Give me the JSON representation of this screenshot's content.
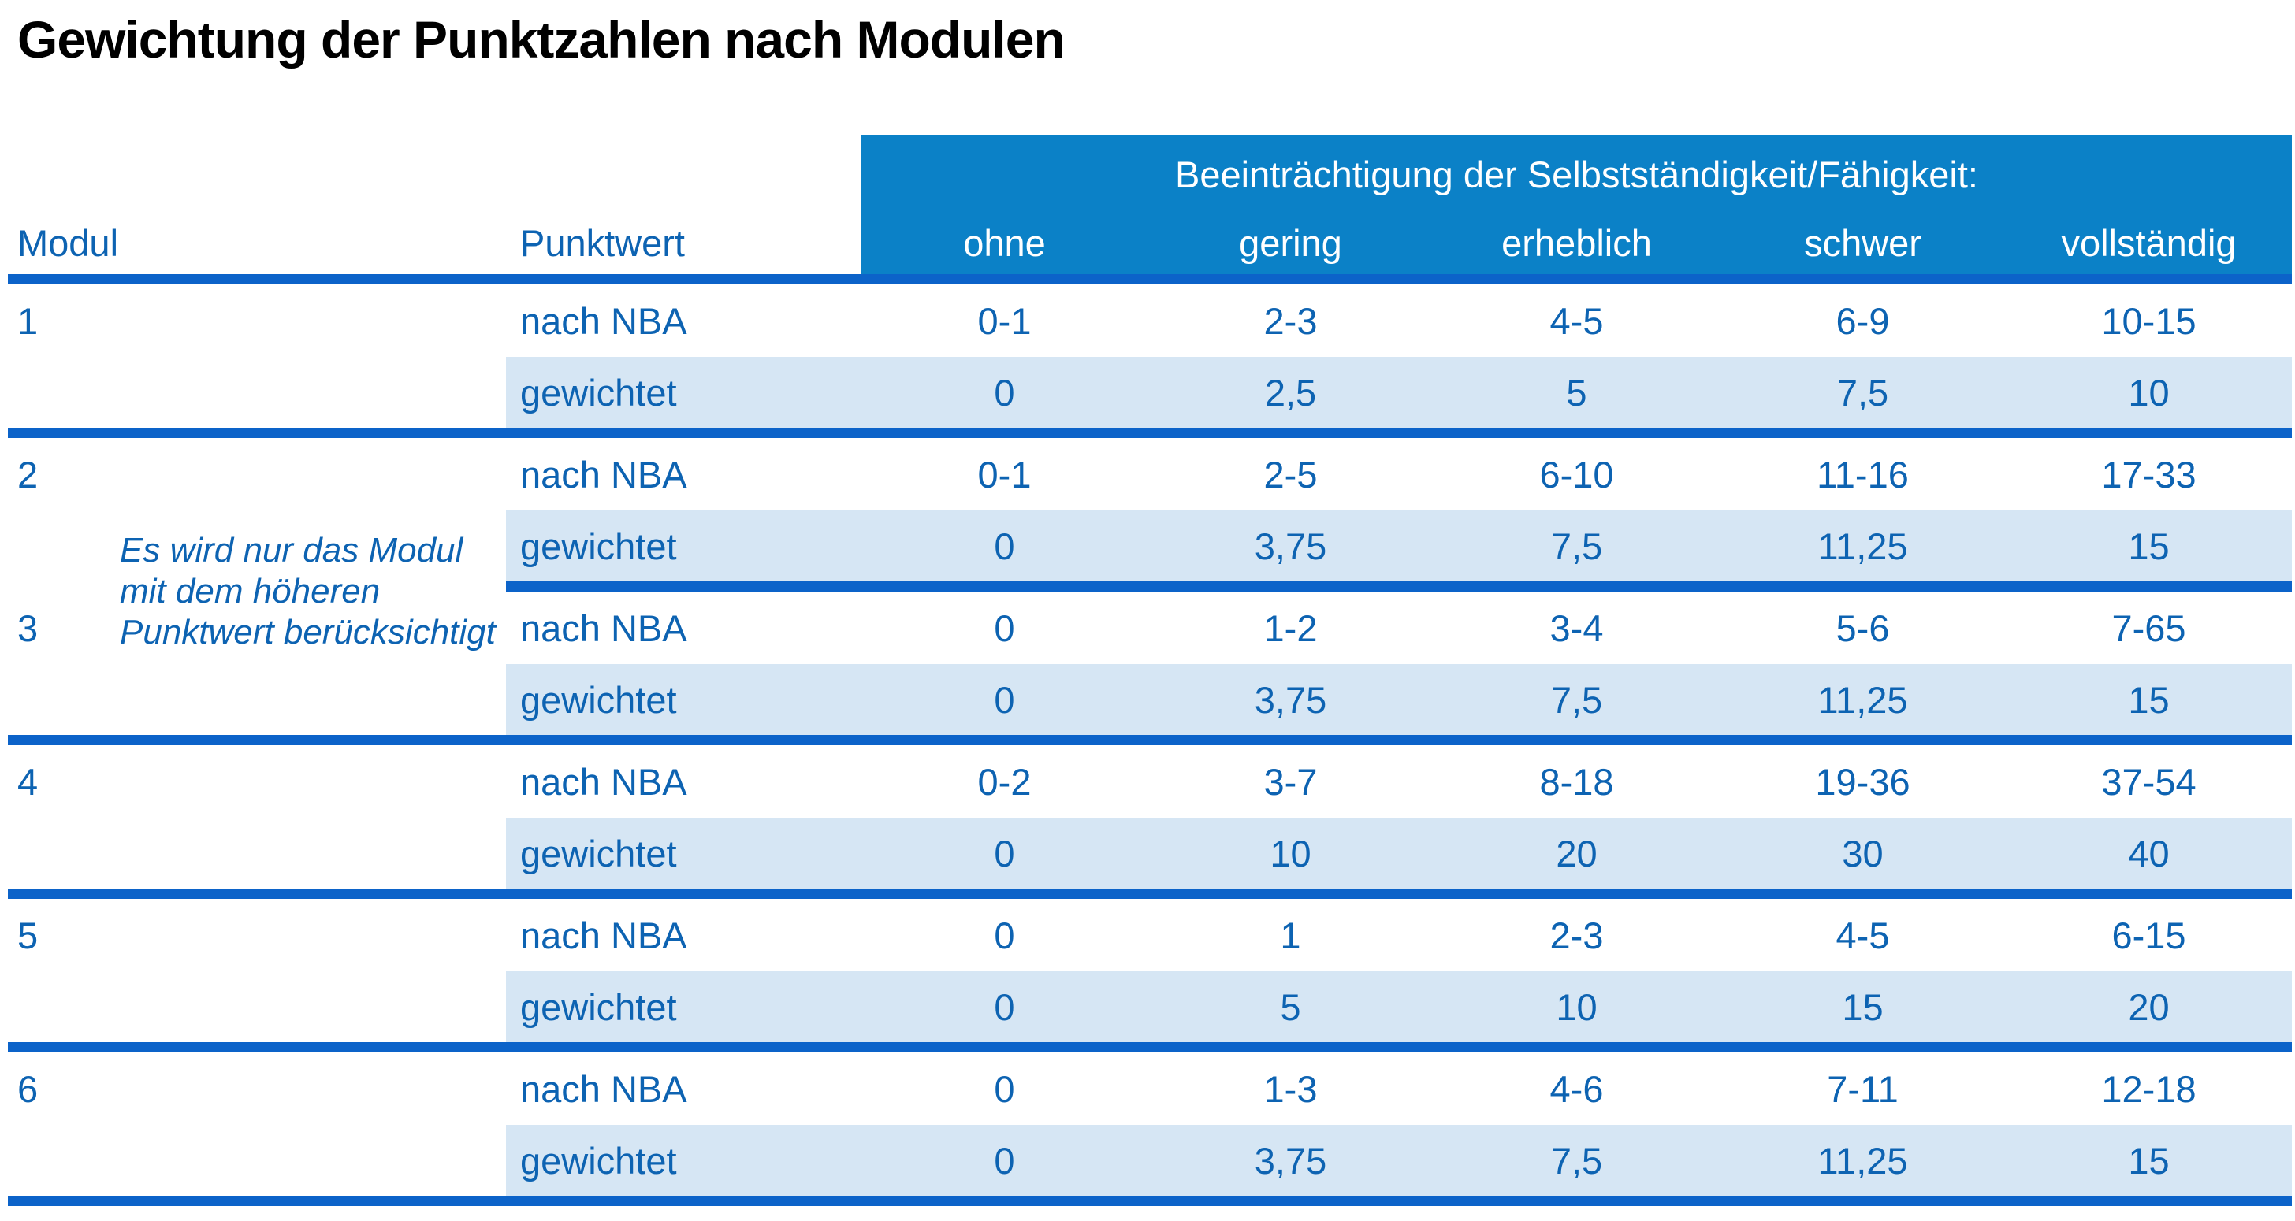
{
  "title": "Gewichtung der Punktzahlen nach Modulen",
  "table": {
    "header": {
      "modul_label": "Modul",
      "punktwert_label": "Punktwert",
      "group_label": "Beeinträchtigung der Selbstständigkeit/Fähigkeit:",
      "severity_levels": [
        "ohne",
        "gering",
        "erheblich",
        "schwer",
        "vollständig"
      ]
    },
    "row_labels": {
      "nba": "nach NBA",
      "weighted": "gewichtet"
    },
    "note": {
      "lines": [
        "Es wird nur das Modul",
        "mit dem höheren",
        "Punktwert berücksichtigt"
      ]
    },
    "modules": [
      {
        "id": "1",
        "nba": [
          "0-1",
          "2-3",
          "4-5",
          "6-9",
          "10-15"
        ],
        "weighted": [
          "0",
          "2,5",
          "5",
          "7,5",
          "10"
        ]
      },
      {
        "id": "2",
        "nba": [
          "0-1",
          "2-5",
          "6-10",
          "11-16",
          "17-33"
        ],
        "weighted": [
          "0",
          "3,75",
          "7,5",
          "11,25",
          "15"
        ]
      },
      {
        "id": "3",
        "nba": [
          "0",
          "1-2",
          "3-4",
          "5-6",
          "7-65"
        ],
        "weighted": [
          "0",
          "3,75",
          "7,5",
          "11,25",
          "15"
        ]
      },
      {
        "id": "4",
        "nba": [
          "0-2",
          "3-7",
          "8-18",
          "19-36",
          "37-54"
        ],
        "weighted": [
          "0",
          "10",
          "20",
          "30",
          "40"
        ]
      },
      {
        "id": "5",
        "nba": [
          "0",
          "1",
          "2-3",
          "4-5",
          "6-15"
        ],
        "weighted": [
          "0",
          "5",
          "10",
          "15",
          "20"
        ]
      },
      {
        "id": "6",
        "nba": [
          "0",
          "1-3",
          "4-6",
          "7-11",
          "12-18"
        ],
        "weighted": [
          "0",
          "3,75",
          "7,5",
          "11,25",
          "15"
        ]
      }
    ]
  },
  "colors": {
    "title-color": "#000000",
    "text-blue": "#0d63b2",
    "header-bg": "#0b81c7",
    "header-text": "#ffffff",
    "rule-blue": "#0c63c9",
    "shade": "#d6e6f4"
  }
}
